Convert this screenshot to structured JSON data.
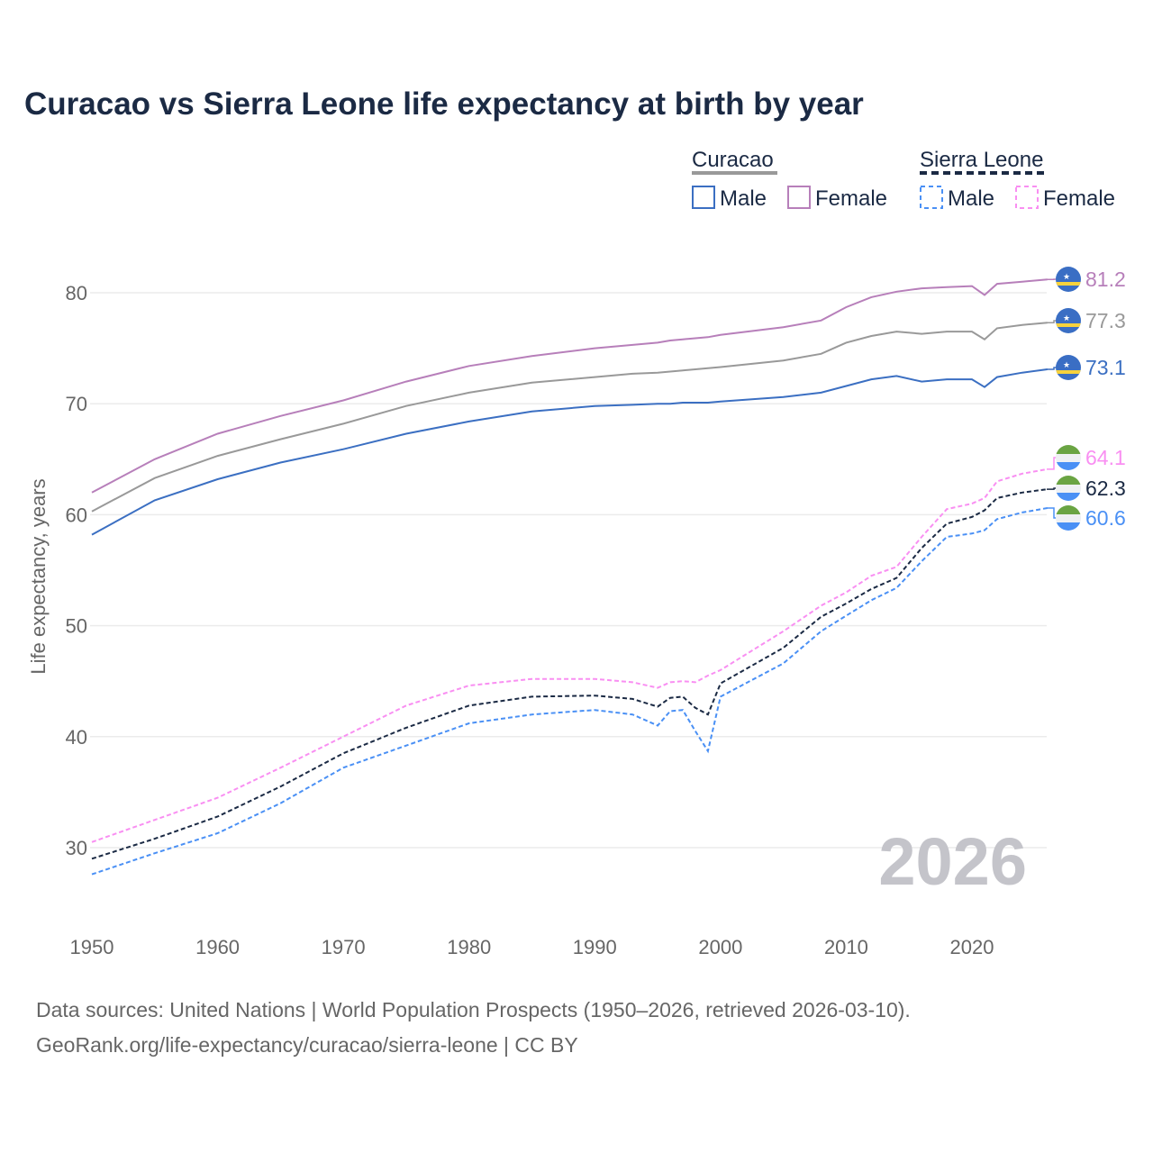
{
  "title": "Curacao vs Sierra Leone life expectancy at birth by year",
  "legend": {
    "groups": [
      {
        "name": "Curacao",
        "line_color": "#999999",
        "dashed": false,
        "items": [
          {
            "label": "Male",
            "color": "#3b6fc2"
          },
          {
            "label": "Female",
            "color": "#b77fba"
          }
        ]
      },
      {
        "name": "Sierra Leone",
        "line_color": "#1b2a44",
        "dashed": true,
        "items": [
          {
            "label": "Male",
            "color": "#4a90f5"
          },
          {
            "label": "Female",
            "color": "#f98ff2"
          }
        ]
      }
    ]
  },
  "watermark_year": "2026",
  "footer": {
    "line1": "Data sources: United Nations | World Population Prospects (1950–2026, retrieved 2026-03-10).",
    "line2": "GeoRank.org/life-expectancy/curacao/sierra-leone | CC BY"
  },
  "chart_data": {
    "type": "line",
    "title": "Curacao vs Sierra Leone life expectancy at birth by year",
    "xlabel": "",
    "ylabel": "Life expectancy, years",
    "xlim": [
      1950,
      2026
    ],
    "ylim": [
      25,
      85
    ],
    "x_ticks": [
      "1950",
      "1960",
      "1970",
      "1980",
      "1990",
      "2000",
      "2010",
      "2020"
    ],
    "y_ticks": [
      "30",
      "40",
      "50",
      "60",
      "70",
      "80"
    ],
    "grid": "horizontal",
    "legend_position": "top-right",
    "x": [
      1950,
      1955,
      1960,
      1965,
      1970,
      1975,
      1980,
      1985,
      1990,
      1993,
      1995,
      1996,
      1997,
      1998,
      1999,
      2000,
      2005,
      2008,
      2010,
      2012,
      2014,
      2016,
      2018,
      2020,
      2021,
      2022,
      2024,
      2026
    ],
    "series": [
      {
        "name": "Curacao Female",
        "color": "#b77fba",
        "dashed": false,
        "flag": "curacao",
        "end_label": "81.2",
        "values": [
          62.0,
          65.0,
          67.3,
          68.9,
          70.3,
          72.0,
          73.4,
          74.3,
          75.0,
          75.3,
          75.5,
          75.7,
          75.8,
          75.9,
          76.0,
          76.2,
          76.9,
          77.5,
          78.7,
          79.6,
          80.1,
          80.4,
          80.5,
          80.6,
          79.8,
          80.8,
          81.0,
          81.2
        ]
      },
      {
        "name": "Curacao",
        "color": "#999999",
        "dashed": false,
        "flag": "curacao",
        "end_label": "77.3",
        "values": [
          60.3,
          63.3,
          65.3,
          66.8,
          68.2,
          69.8,
          71.0,
          71.9,
          72.4,
          72.7,
          72.8,
          72.9,
          73.0,
          73.1,
          73.2,
          73.3,
          73.9,
          74.5,
          75.5,
          76.1,
          76.5,
          76.3,
          76.5,
          76.5,
          75.8,
          76.8,
          77.1,
          77.3
        ]
      },
      {
        "name": "Curacao Male",
        "color": "#3b6fc2",
        "dashed": false,
        "flag": "curacao",
        "end_label": "73.1",
        "values": [
          58.2,
          61.3,
          63.2,
          64.7,
          65.9,
          67.3,
          68.4,
          69.3,
          69.8,
          69.9,
          70.0,
          70.0,
          70.1,
          70.1,
          70.1,
          70.2,
          70.6,
          71.0,
          71.6,
          72.2,
          72.5,
          72.0,
          72.2,
          72.2,
          71.5,
          72.4,
          72.8,
          73.1
        ]
      },
      {
        "name": "Sierra Leone Female",
        "color": "#f98ff2",
        "dashed": true,
        "flag": "sierra-leone",
        "end_label": "64.1",
        "values": [
          30.5,
          32.5,
          34.5,
          37.2,
          40.0,
          42.8,
          44.6,
          45.2,
          45.2,
          44.9,
          44.4,
          44.9,
          45.0,
          44.9,
          45.5,
          46.0,
          49.5,
          51.8,
          53.0,
          54.5,
          55.3,
          58.0,
          60.5,
          61.0,
          61.5,
          63.0,
          63.7,
          64.1
        ]
      },
      {
        "name": "Sierra Leone",
        "color": "#1b2a44",
        "dashed": true,
        "flag": "sierra-leone",
        "end_label": "62.3",
        "values": [
          29.0,
          30.8,
          32.8,
          35.5,
          38.5,
          40.8,
          42.8,
          43.6,
          43.7,
          43.4,
          42.7,
          43.5,
          43.6,
          42.6,
          42.0,
          44.8,
          48.0,
          50.8,
          52.0,
          53.3,
          54.3,
          57.0,
          59.2,
          59.8,
          60.4,
          61.5,
          62.0,
          62.3
        ]
      },
      {
        "name": "Sierra Leone Male",
        "color": "#4a90f5",
        "dashed": true,
        "flag": "sierra-leone",
        "end_label": "60.6",
        "values": [
          27.6,
          29.5,
          31.3,
          34.0,
          37.2,
          39.2,
          41.2,
          42.0,
          42.4,
          42.0,
          41.0,
          42.3,
          42.4,
          40.5,
          38.7,
          43.6,
          46.6,
          49.5,
          50.9,
          52.3,
          53.4,
          55.8,
          58.0,
          58.3,
          58.6,
          59.6,
          60.2,
          60.6
        ]
      }
    ]
  }
}
